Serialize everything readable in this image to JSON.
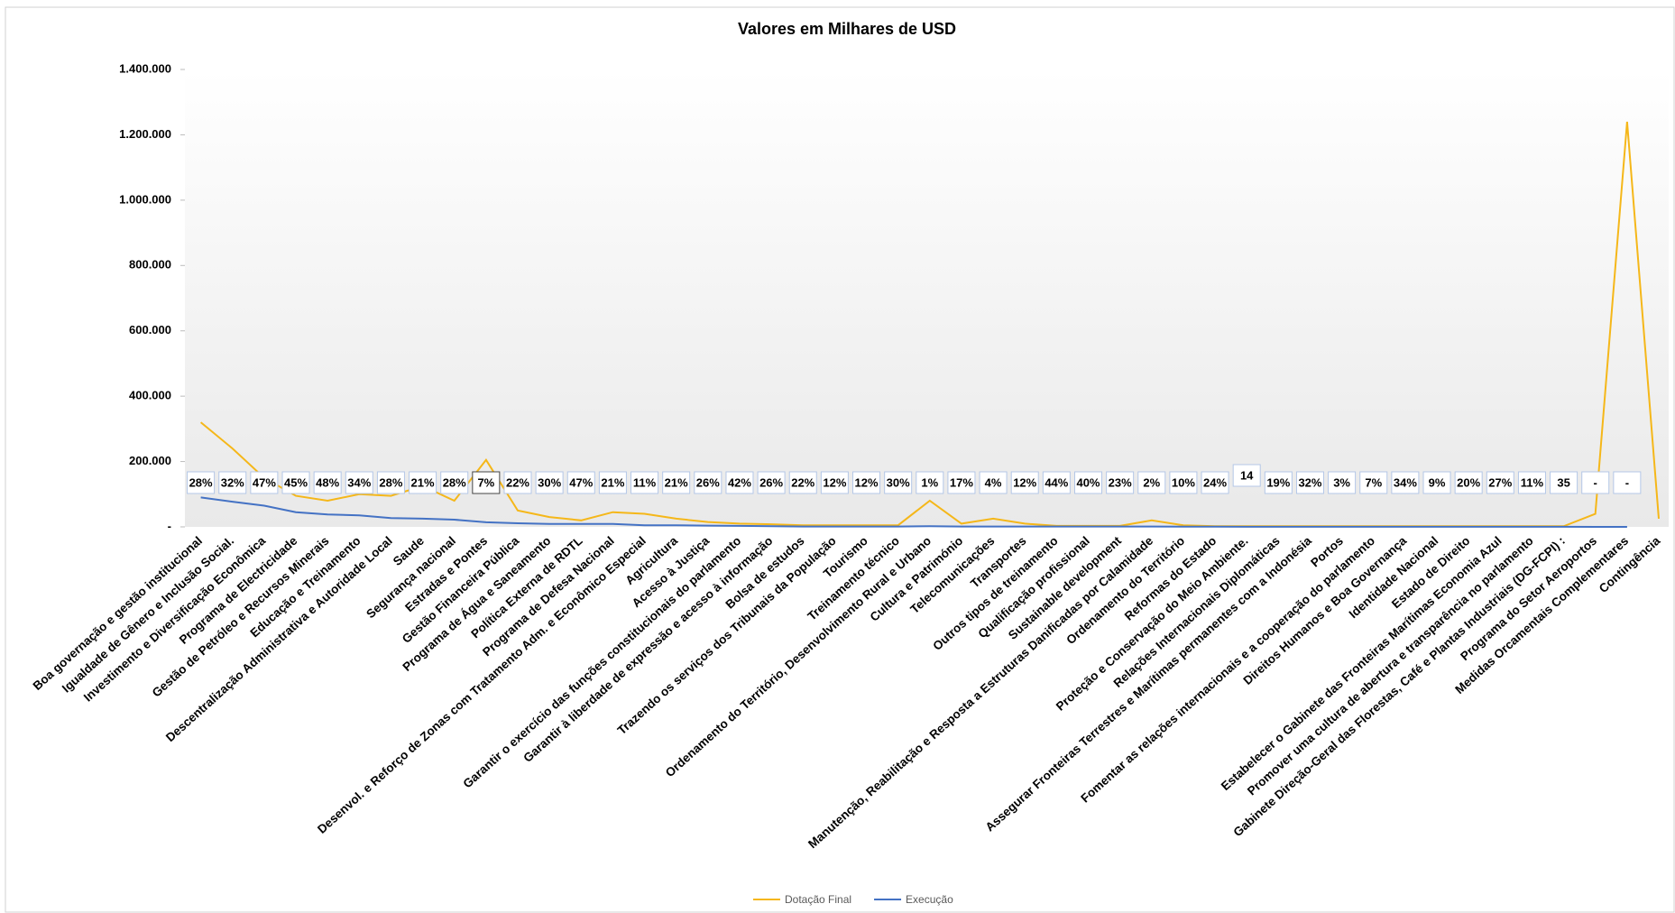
{
  "chart_data": {
    "type": "line",
    "title": "Valores em Milhares de USD",
    "categories": [
      "Boa governação e gestão institucional",
      "Igualdade de Gênero e Inclusão Social.",
      "Investimento e Diversificação Econômica",
      "Programa de Electricidade",
      "Gestão de Petróleo e Recursos Minerais",
      "Educação e Treinamento",
      "Descentralização Administrativa e Autoridade Local",
      "Saude",
      "Segurança nacional",
      "Estradas e Pontes",
      "Gestão Financeira Pública",
      "Programa de Água e Saneamento",
      "Política Externa de RDTL",
      "Programa de Defesa Nacional",
      "Desenvol. e Reforço de Zonas com Tratamento Adm. e Econômico Especial",
      "Agricultura",
      "Acesso à Justiça",
      "Garantir o exercício das funções constitucionais do parlamento",
      "Garantir à liberdade de expressão e acesso à informação",
      "Bolsa de estudos",
      "Trazendo os serviços dos Tribunais da População",
      "Tourismo",
      "Treinamento técnico",
      "Ordenamento do Território, Desenvolvimento Rural e Urbano",
      "Cultura e Património",
      "Telecomunicações",
      "Transportes",
      "Outros tipos de treinamento",
      "Qualificação profissional",
      "Sustainable development",
      "Manutenção, Reabilitação e Resposta a Estruturas Danificadas por Calamidade",
      "Ordenamento do Território",
      "Reformas do Estado",
      "Proteção e Conservação do Meio Ambiente.",
      "Relações Internacionais Diplomáticas",
      "Assegurar Fronteiras Terrestres e Marítimas permanentes com a Indonésia",
      "Portos",
      "Fomentar as relações internacionais e a cooperação do parlamento",
      "Direitos Humanos e Boa Governança",
      "Identidade Nacional",
      "Estado de Direito",
      "Estabelecer o Gabinete das Fronteiras Marítimas Economia Azul",
      "Promover uma cultura de abertura e transparência no parlamento",
      "Gabinete Direção-Geral das Florestas, Café e Plantas Industriais (DG-FCPI) :",
      "Programa do Setor Aeroportos",
      "Medidas Orcamentais Complementares",
      "Contingência"
    ],
    "series": [
      {
        "name": "Dotação Final",
        "color": "#f5b719",
        "values": [
          320000,
          240000,
          150000,
          95000,
          80000,
          100000,
          95000,
          125000,
          80000,
          205000,
          50000,
          30000,
          20000,
          45000,
          40000,
          25000,
          15000,
          10000,
          8000,
          5000,
          5000,
          5000,
          5000,
          80000,
          10000,
          25000,
          10000,
          3000,
          3000,
          3000,
          20000,
          5000,
          2000,
          2000,
          2000,
          2000,
          2000,
          2000,
          2000,
          2000,
          2000,
          2000,
          2000,
          2000,
          40000,
          1240000,
          25000
        ]
      },
      {
        "name": "Execução",
        "color": "#4472c4",
        "values": [
          90000,
          77000,
          65000,
          45000,
          38000,
          35000,
          27000,
          25000,
          22000,
          14000,
          11000,
          9000,
          9000,
          9000,
          5000,
          5000,
          4000,
          3000,
          2000,
          1000,
          1000,
          1000,
          1000,
          2000,
          1000,
          1000,
          1000,
          1000,
          1000,
          1000,
          1000,
          500,
          500,
          300,
          300,
          300,
          300,
          300,
          300,
          300,
          300,
          300,
          300,
          300,
          0,
          0,
          null
        ]
      }
    ],
    "data_labels": [
      "28%",
      "32%",
      "47%",
      "45%",
      "48%",
      "34%",
      "28%",
      "21%",
      "28%",
      "7%",
      "22%",
      "30%",
      "47%",
      "21%",
      "11%",
      "21%",
      "26%",
      "42%",
      "26%",
      "22%",
      "12%",
      "12%",
      "30%",
      "1%",
      "17%",
      "4%",
      "12%",
      "44%",
      "40%",
      "23%",
      "2%",
      "10%",
      "24%",
      "14",
      "19%",
      "32%",
      "3%",
      "7%",
      "34%",
      "9%",
      "20%",
      "27%",
      "11%",
      "35",
      "-",
      "-",
      null
    ],
    "ylim": [
      0,
      1400000
    ],
    "yticks": [
      {
        "value": 0,
        "label": "-"
      },
      {
        "value": 200000,
        "label": "200.000"
      },
      {
        "value": 400000,
        "label": "400.000"
      },
      {
        "value": 600000,
        "label": "600.000"
      },
      {
        "value": 800000,
        "label": "800.000"
      },
      {
        "value": 1000000,
        "label": "1.000.000"
      },
      {
        "value": 1200000,
        "label": "1.200.000"
      },
      {
        "value": 1400000,
        "label": "1.400.000"
      }
    ],
    "legend": "bottom"
  }
}
